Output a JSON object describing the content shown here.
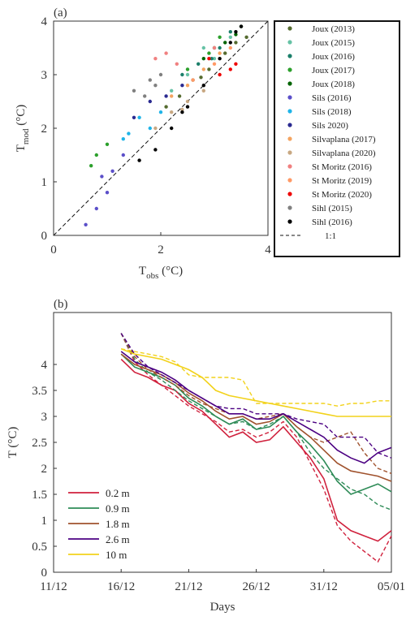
{
  "chart_data": [
    {
      "panel": "(a)",
      "type": "scatter",
      "xlabel_base": "T",
      "xlabel_sub": "obs",
      "xlabel_unit": " (°C)",
      "ylabel_base": "T",
      "ylabel_sub": "mod",
      "ylabel_unit": " (°C)",
      "xlim": [
        0,
        4
      ],
      "ylim": [
        0,
        4
      ],
      "xticks": [
        "0",
        "2",
        "4"
      ],
      "yticks": [
        "0",
        "1",
        "2",
        "3",
        "4"
      ],
      "reference_line_label": "1:1",
      "legend_position": "right",
      "series": [
        {
          "name": "Joux (2013)",
          "color": "#556b2f",
          "points": [
            [
              2.35,
              2.6
            ],
            [
              2.6,
              2.9
            ],
            [
              2.9,
              3.1
            ],
            [
              3.2,
              3.4
            ],
            [
              3.4,
              3.6
            ],
            [
              2.1,
              2.4
            ],
            [
              3.6,
              3.7
            ],
            [
              2.75,
              2.95
            ]
          ]
        },
        {
          "name": "Joux (2015)",
          "color": "#66c2a5",
          "points": [
            [
              2.2,
              2.7
            ],
            [
              2.5,
              3.0
            ],
            [
              3.0,
              3.3
            ],
            [
              2.8,
              3.5
            ],
            [
              3.3,
              3.7
            ]
          ]
        },
        {
          "name": "Joux (2016)",
          "color": "#1b7f6a",
          "points": [
            [
              2.4,
              3.0
            ],
            [
              2.7,
              3.2
            ],
            [
              3.1,
              3.5
            ],
            [
              3.3,
              3.8
            ],
            [
              2.95,
              3.3
            ]
          ]
        },
        {
          "name": "Joux (2017)",
          "color": "#2ca02c",
          "points": [
            [
              0.7,
              1.3
            ],
            [
              0.8,
              1.5
            ],
            [
              1.0,
              1.7
            ],
            [
              2.5,
              3.1
            ],
            [
              2.9,
              3.4
            ],
            [
              3.1,
              3.7
            ]
          ]
        },
        {
          "name": "Joux (2018)",
          "color": "#006400",
          "points": [
            [
              2.8,
              3.3
            ],
            [
              3.0,
              3.5
            ],
            [
              3.2,
              3.6
            ],
            [
              3.5,
              3.9
            ],
            [
              3.4,
              3.75
            ]
          ]
        },
        {
          "name": "Sils (2016)",
          "color": "#5b4fc9",
          "points": [
            [
              0.6,
              0.2
            ],
            [
              0.8,
              0.5
            ],
            [
              1.0,
              0.8
            ],
            [
              1.1,
              1.2
            ],
            [
              0.9,
              1.1
            ],
            [
              1.3,
              1.5
            ]
          ]
        },
        {
          "name": "Sils (2018)",
          "color": "#1fb4e8",
          "points": [
            [
              1.3,
              1.8
            ],
            [
              1.6,
              2.2
            ],
            [
              1.8,
              2.0
            ],
            [
              2.0,
              2.3
            ],
            [
              1.4,
              1.9
            ]
          ]
        },
        {
          "name": "Sils 2020)",
          "color": "#2a2a90",
          "points": [
            [
              1.5,
              2.2
            ],
            [
              1.8,
              2.5
            ],
            [
              2.1,
              2.6
            ],
            [
              2.4,
              2.8
            ]
          ]
        },
        {
          "name": "Silvaplana (2017)",
          "color": "#f4a460",
          "points": [
            [
              2.2,
              2.6
            ],
            [
              2.5,
              2.8
            ],
            [
              2.8,
              3.1
            ],
            [
              3.1,
              3.4
            ]
          ]
        },
        {
          "name": "Silvaplana (2020)",
          "color": "#c8a882",
          "points": [
            [
              1.9,
              2.0
            ],
            [
              2.2,
              2.3
            ],
            [
              2.5,
              2.5
            ],
            [
              2.8,
              2.7
            ],
            [
              2.4,
              2.35
            ]
          ]
        },
        {
          "name": "St Moritz (2016)",
          "color": "#f08080",
          "points": [
            [
              1.9,
              3.3
            ],
            [
              2.1,
              3.4
            ],
            [
              2.3,
              3.2
            ],
            [
              3.0,
              3.5
            ]
          ]
        },
        {
          "name": "St Moritz (2019)",
          "color": "#ff9966",
          "points": [
            [
              2.6,
              2.9
            ],
            [
              3.0,
              3.2
            ],
            [
              3.3,
              3.5
            ]
          ]
        },
        {
          "name": "St Moritz (2020)",
          "color": "#ee0000",
          "points": [
            [
              2.9,
              3.3
            ],
            [
              3.1,
              3.0
            ],
            [
              3.4,
              3.2
            ],
            [
              3.3,
              3.1
            ]
          ]
        },
        {
          "name": "Sihl (2015)",
          "color": "#808080",
          "points": [
            [
              1.5,
              2.7
            ],
            [
              1.8,
              2.9
            ],
            [
              2.0,
              3.0
            ],
            [
              1.7,
              2.6
            ],
            [
              1.9,
              2.8
            ]
          ]
        },
        {
          "name": "Sihl (2016)",
          "color": "#000000",
          "points": [
            [
              1.9,
              1.6
            ],
            [
              2.2,
              2.0
            ],
            [
              2.5,
              2.4
            ],
            [
              2.8,
              2.8
            ],
            [
              3.1,
              3.3
            ],
            [
              3.3,
              3.6
            ],
            [
              3.5,
              3.9
            ],
            [
              3.4,
              3.8
            ],
            [
              2.4,
              2.3
            ],
            [
              1.6,
              1.4
            ]
          ]
        }
      ]
    },
    {
      "panel": "(b)",
      "type": "line",
      "xlabel": "Days",
      "ylabel": "T (°C)",
      "xlim": [
        0,
        25
      ],
      "ylim": [
        0,
        5
      ],
      "xtick_values": [
        0,
        5,
        10,
        15,
        20,
        25
      ],
      "xticks": [
        "11/12",
        "16/12",
        "21/12",
        "26/12",
        "31/12",
        "05/01"
      ],
      "ytick_values": [
        0,
        0.5,
        1,
        1.5,
        2,
        2.5,
        3,
        3.5,
        4
      ],
      "yticks": [
        "0",
        "0.5",
        "1",
        "1.5",
        "2",
        "2.5",
        "3",
        "3.5",
        "4"
      ],
      "legend_position": "bottom-left",
      "x": [
        5,
        6,
        7,
        8,
        9,
        10,
        11,
        12,
        13,
        14,
        15,
        16,
        17,
        18,
        19,
        20,
        21,
        22,
        23,
        24,
        25
      ],
      "series": [
        {
          "name": "0.2 m",
          "color": "#d0213d",
          "values": [
            4.1,
            3.85,
            3.75,
            3.6,
            3.5,
            3.25,
            3.1,
            2.85,
            2.6,
            2.7,
            2.5,
            2.55,
            2.8,
            2.5,
            2.2,
            1.8,
            1.0,
            0.8,
            0.7,
            0.6,
            0.8
          ],
          "model": [
            4.6,
            4.05,
            3.8,
            3.6,
            3.4,
            3.2,
            3.05,
            2.9,
            2.7,
            2.75,
            2.6,
            2.7,
            2.9,
            2.6,
            2.1,
            1.6,
            0.9,
            0.6,
            0.4,
            0.2,
            0.7
          ]
        },
        {
          "name": "0.9 m",
          "color": "#2e8b57",
          "values": [
            4.2,
            3.95,
            3.85,
            3.75,
            3.6,
            3.35,
            3.2,
            3.0,
            2.85,
            2.95,
            2.75,
            2.8,
            3.0,
            2.7,
            2.45,
            2.15,
            1.75,
            1.5,
            1.6,
            1.7,
            1.55
          ],
          "model": [
            4.6,
            4.1,
            3.85,
            3.7,
            3.5,
            3.3,
            3.15,
            3.0,
            2.85,
            2.9,
            2.75,
            2.85,
            3.0,
            2.7,
            2.3,
            2.0,
            1.8,
            1.6,
            1.5,
            1.3,
            1.2
          ]
        },
        {
          "name": "1.8 m",
          "color": "#a0522d",
          "values": [
            4.2,
            4.0,
            3.9,
            3.8,
            3.65,
            3.45,
            3.3,
            3.1,
            2.95,
            3.0,
            2.85,
            2.9,
            3.05,
            2.8,
            2.6,
            2.35,
            2.1,
            1.95,
            1.9,
            1.85,
            1.75
          ],
          "model": [
            4.6,
            4.15,
            3.9,
            3.75,
            3.6,
            3.4,
            3.25,
            3.15,
            3.05,
            3.05,
            2.95,
            3.0,
            3.05,
            2.8,
            2.6,
            2.5,
            2.6,
            2.7,
            2.3,
            2.0,
            1.9
          ]
        },
        {
          "name": "2.6 m",
          "color": "#4b0082",
          "values": [
            4.25,
            4.05,
            3.95,
            3.85,
            3.7,
            3.5,
            3.35,
            3.2,
            3.05,
            3.05,
            2.95,
            2.95,
            3.05,
            2.9,
            2.75,
            2.6,
            2.35,
            2.2,
            2.1,
            2.3,
            2.4
          ],
          "model": [
            4.6,
            4.2,
            3.95,
            3.8,
            3.65,
            3.5,
            3.35,
            3.2,
            3.15,
            3.15,
            3.05,
            3.05,
            3.05,
            2.95,
            2.9,
            2.85,
            2.6,
            2.6,
            2.6,
            2.3,
            2.2
          ]
        },
        {
          "name": "10 m",
          "color": "#f2d21b",
          "values": [
            4.3,
            4.2,
            4.15,
            4.1,
            4.0,
            3.9,
            3.75,
            3.5,
            3.4,
            3.35,
            3.3,
            3.25,
            3.2,
            3.15,
            3.1,
            3.05,
            3.0,
            3.0,
            3.0,
            3.0,
            3.0
          ],
          "model": [
            4.3,
            4.25,
            4.2,
            4.15,
            4.05,
            3.8,
            3.75,
            3.75,
            3.75,
            3.7,
            3.25,
            3.25,
            3.25,
            3.25,
            3.25,
            3.25,
            3.2,
            3.25,
            3.25,
            3.3,
            3.3
          ]
        }
      ]
    }
  ]
}
